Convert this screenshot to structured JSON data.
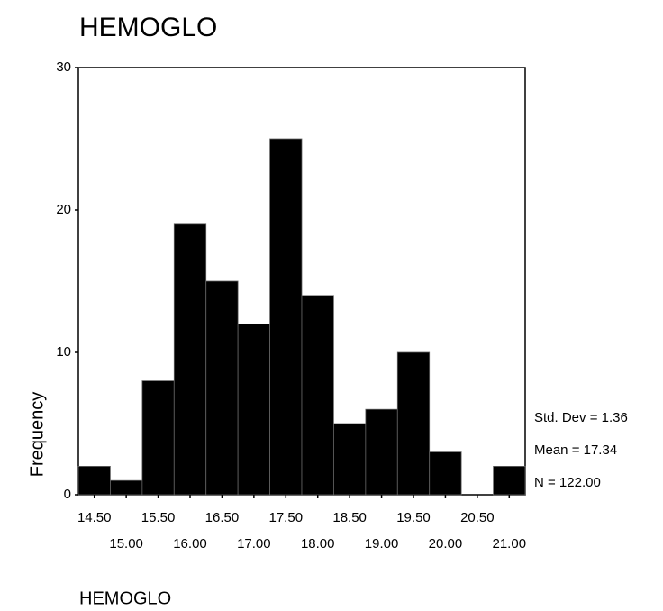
{
  "chart_data": {
    "type": "histogram",
    "title": "HEMOGLO",
    "xlabel": "HEMOGLO",
    "ylabel": "Frequency",
    "bins": [
      14.25,
      14.75,
      15.25,
      15.75,
      16.25,
      16.75,
      17.25,
      17.75,
      18.25,
      18.75,
      19.25,
      19.75,
      20.25,
      20.75,
      21.25
    ],
    "values": [
      2,
      1,
      8,
      19,
      15,
      12,
      25,
      14,
      5,
      6,
      10,
      3,
      0,
      2
    ],
    "color": "#000000",
    "xlim": [
      14.25,
      21.25
    ],
    "xticks": [
      {
        "value": 14.5,
        "label": "14.50"
      },
      {
        "value": 15,
        "label": "15.00"
      },
      {
        "value": 15.5,
        "label": "15.50"
      },
      {
        "value": 16,
        "label": "16.00"
      },
      {
        "value": 16.5,
        "label": "16.50"
      },
      {
        "value": 17,
        "label": "17.00"
      },
      {
        "value": 17.5,
        "label": "17.50"
      },
      {
        "value": 18,
        "label": "18.00"
      },
      {
        "value": 18.5,
        "label": "18.50"
      },
      {
        "value": 19,
        "label": "19.00"
      },
      {
        "value": 19.5,
        "label": "19.50"
      },
      {
        "value": 20,
        "label": "20.00"
      },
      {
        "value": 20.5,
        "label": "20.50"
      },
      {
        "value": 21,
        "label": "21.00"
      }
    ],
    "ylim": [
      0,
      30
    ],
    "yticks": [
      0,
      10,
      20,
      30
    ],
    "grid": false,
    "annotations": [
      "Std. Dev = 1.36",
      "Mean = 17.34",
      "N = 122.00"
    ]
  }
}
